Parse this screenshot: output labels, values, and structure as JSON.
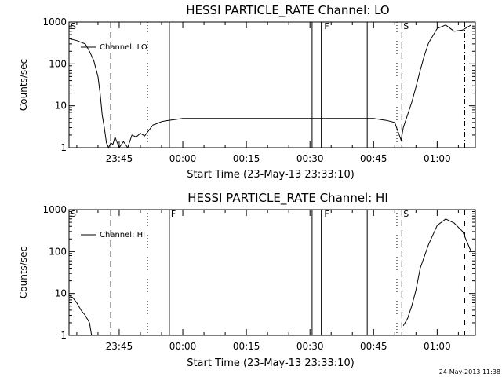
{
  "timestamp": "24-May-2013 11:38",
  "chart_data": [
    {
      "type": "line",
      "title": "HESSI PARTICLE_RATE Channel: LO",
      "xlabel": "Start Time (23-May-13 23:33:10)",
      "ylabel": "Counts/sec",
      "yscale": "log",
      "ylim": [
        1,
        1000
      ],
      "xlim": [
        "23:33:10",
        "01:09:00"
      ],
      "y_ticks": [
        "1",
        "10",
        "100",
        "1000"
      ],
      "x_ticks": [
        "23:45",
        "00:00",
        "00:15",
        "00:30",
        "00:45",
        "01:00"
      ],
      "legend": "Channel: LO",
      "series": [
        {
          "name": "Channel: LO",
          "x": [
            "23:33:10",
            "23:35",
            "23:37",
            "23:38",
            "23:39",
            "23:40",
            "23:40:30",
            "23:41",
            "23:41:30",
            "23:42",
            "23:42:30",
            "23:43",
            "23:43:30",
            "23:44",
            "23:45",
            "23:46",
            "23:47",
            "23:48",
            "23:49",
            "23:50",
            "23:51",
            "23:52",
            "23:53",
            "23:54",
            "23:55",
            "23:56",
            "23:58",
            "00:00",
            "00:05",
            "00:10",
            "00:15",
            "00:20",
            "00:25",
            "00:30",
            "00:35",
            "00:40",
            "00:45",
            "00:48",
            "00:50",
            "00:51:30",
            "00:52",
            "00:53",
            "00:54",
            "00:55",
            "00:56",
            "00:57",
            "00:58",
            "01:00",
            "01:02",
            "01:04",
            "01:06",
            "01:08"
          ],
          "y": [
            400,
            360,
            300,
            200,
            120,
            50,
            20,
            6,
            3,
            1.3,
            1,
            1.3,
            1.2,
            1.8,
            1,
            1.4,
            1,
            2,
            1.8,
            2.2,
            1.9,
            2.6,
            3.5,
            3.8,
            4.2,
            4.4,
            4.7,
            5,
            5,
            5,
            5,
            5,
            5,
            5,
            5,
            5,
            5,
            4.5,
            4,
            1.5,
            3,
            6,
            12,
            28,
            70,
            160,
            320,
            700,
            850,
            600,
            640,
            850
          ]
        }
      ],
      "markers": [
        {
          "time": "23:43:00",
          "style": "dashed"
        },
        {
          "time": "23:51:40",
          "style": "dotted"
        },
        {
          "time": "23:56:50",
          "style": "solid"
        },
        {
          "time": "00:30:30",
          "style": "solid"
        },
        {
          "time": "00:32:40",
          "style": "solid"
        },
        {
          "time": "00:43:30",
          "style": "solid"
        },
        {
          "time": "00:50:30",
          "style": "dotted"
        },
        {
          "time": "00:51:40",
          "style": "dashed"
        },
        {
          "time": "01:06:30",
          "style": "dashdot"
        }
      ],
      "flags": [
        {
          "time": "23:33:10",
          "label": "S"
        },
        {
          "time": "00:33:00",
          "label": "F"
        },
        {
          "time": "00:51:40",
          "label": "S"
        }
      ]
    },
    {
      "type": "line",
      "title": "HESSI PARTICLE_RATE Channel: HI",
      "xlabel": "Start Time (23-May-13 23:33:10)",
      "ylabel": "Counts/sec",
      "yscale": "log",
      "ylim": [
        1,
        1000
      ],
      "xlim": [
        "23:33:10",
        "01:09:00"
      ],
      "y_ticks": [
        "1",
        "10",
        "100",
        "1000"
      ],
      "x_ticks": [
        "23:45",
        "00:00",
        "00:15",
        "00:30",
        "00:45",
        "01:00"
      ],
      "legend": "Channel: HI",
      "series": [
        {
          "name": "Channel: HI",
          "x": [
            "23:33:10",
            "23:34",
            "23:35",
            "23:36",
            "23:37",
            "23:38",
            "23:38:30",
            "00:52",
            "00:53",
            "00:54",
            "00:55",
            "00:56",
            "00:58",
            "01:00",
            "01:02",
            "01:04",
            "01:06",
            "01:08"
          ],
          "y": [
            9,
            8,
            6,
            4,
            3,
            2,
            1,
            1.7,
            2.5,
            5,
            12,
            40,
            150,
            420,
            600,
            480,
            300,
            100
          ]
        }
      ],
      "markers": [
        {
          "time": "23:43:00",
          "style": "dashed"
        },
        {
          "time": "23:51:40",
          "style": "dotted"
        },
        {
          "time": "23:56:50",
          "style": "solid"
        },
        {
          "time": "00:30:30",
          "style": "solid"
        },
        {
          "time": "00:32:40",
          "style": "solid"
        },
        {
          "time": "00:43:30",
          "style": "solid"
        },
        {
          "time": "00:50:30",
          "style": "dotted"
        },
        {
          "time": "00:51:40",
          "style": "dashed"
        },
        {
          "time": "01:06:30",
          "style": "dashdot"
        }
      ],
      "flags": [
        {
          "time": "23:33:10",
          "label": "S"
        },
        {
          "time": "23:56:50",
          "label": "F"
        },
        {
          "time": "00:33:00",
          "label": "F"
        },
        {
          "time": "00:51:40",
          "label": "S"
        }
      ]
    }
  ]
}
